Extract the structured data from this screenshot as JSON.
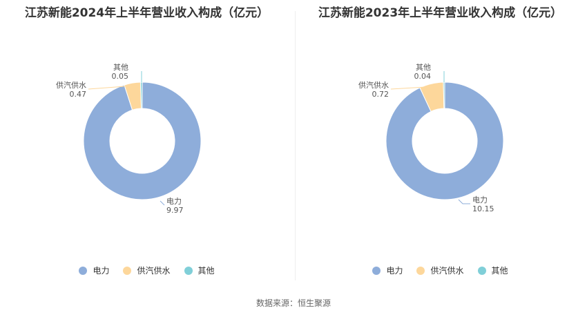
{
  "colors": {
    "电力": "#8eadda",
    "供汽供水": "#fdd79b",
    "其他": "#80cfd8"
  },
  "source": "数据来源：恒生聚源",
  "chart_data": [
    {
      "type": "pie",
      "title": "江苏新能2024年上半年营业收入构成（亿元）",
      "categories": [
        "电力",
        "供汽供水",
        "其他"
      ],
      "values": [
        9.97,
        0.47,
        0.05
      ],
      "legend": "bottom"
    },
    {
      "type": "pie",
      "title": "江苏新能2023年上半年营业收入构成（亿元）",
      "categories": [
        "电力",
        "供汽供水",
        "其他"
      ],
      "values": [
        10.15,
        0.72,
        0.04
      ],
      "legend": "bottom"
    }
  ]
}
